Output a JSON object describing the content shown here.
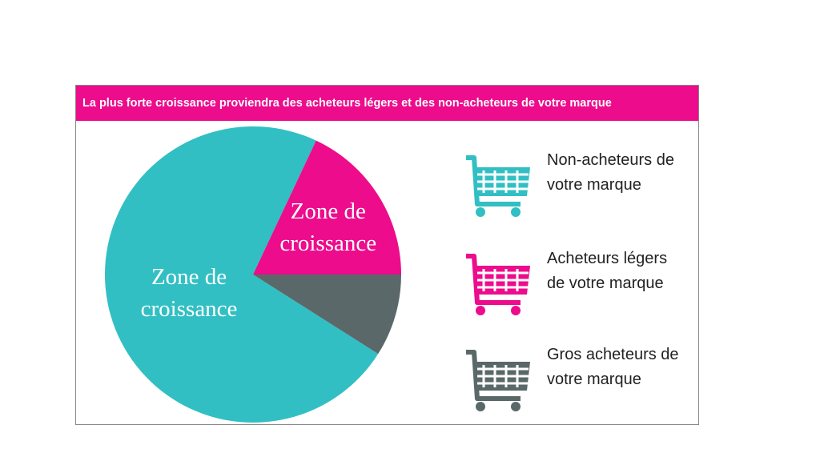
{
  "chart_data": {
    "type": "pie",
    "title": "La plus forte croissance proviendra des acheteurs légers et des non-acheteurs de votre marque",
    "categories": [
      "Non-acheteurs de votre marque",
      "Acheteurs légers de votre marque",
      "Gros acheteurs de votre marque"
    ],
    "values": [
      73,
      18,
      9
    ],
    "colors": [
      "#31bfc3",
      "#ec0c8c",
      "#5b6869"
    ],
    "slice_labels": [
      "Zone de croissance",
      "Zone de croissance",
      null
    ],
    "legend": "right"
  }
}
